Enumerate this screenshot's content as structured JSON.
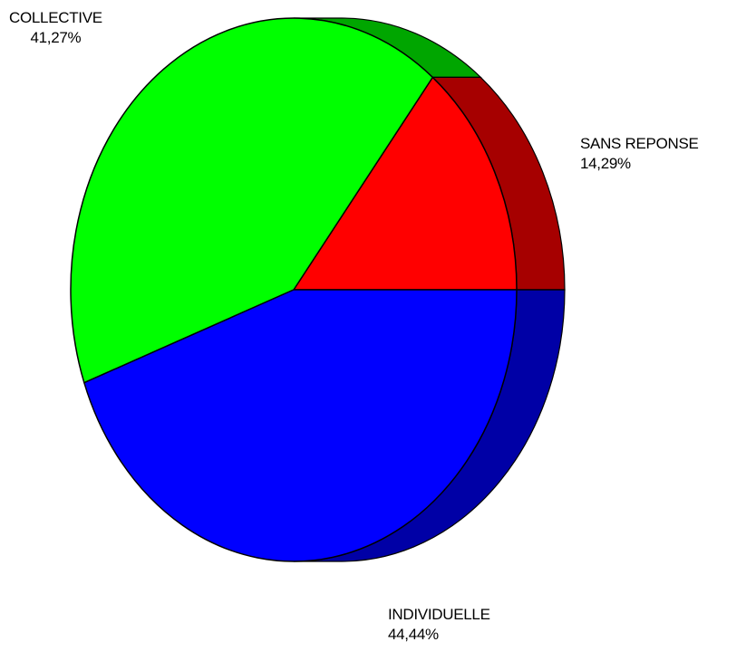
{
  "chart_data": {
    "type": "pie",
    "style": "3d-pie",
    "title": "",
    "slices": [
      {
        "label": "SANS REPONSE",
        "value": 14.29,
        "value_text": "14,29%",
        "color": "#ff0000",
        "side_color": "#a60000"
      },
      {
        "label": "COLLECTIVE",
        "value": 41.27,
        "value_text": "41,27%",
        "color": "#00ff00",
        "side_color": "#00a600"
      },
      {
        "label": "INDIVIDUELLE",
        "value": 44.44,
        "value_text": "44,44%",
        "color": "#0000ff",
        "side_color": "#0000a6"
      }
    ],
    "legend": "none",
    "labels_placement": "outside"
  }
}
